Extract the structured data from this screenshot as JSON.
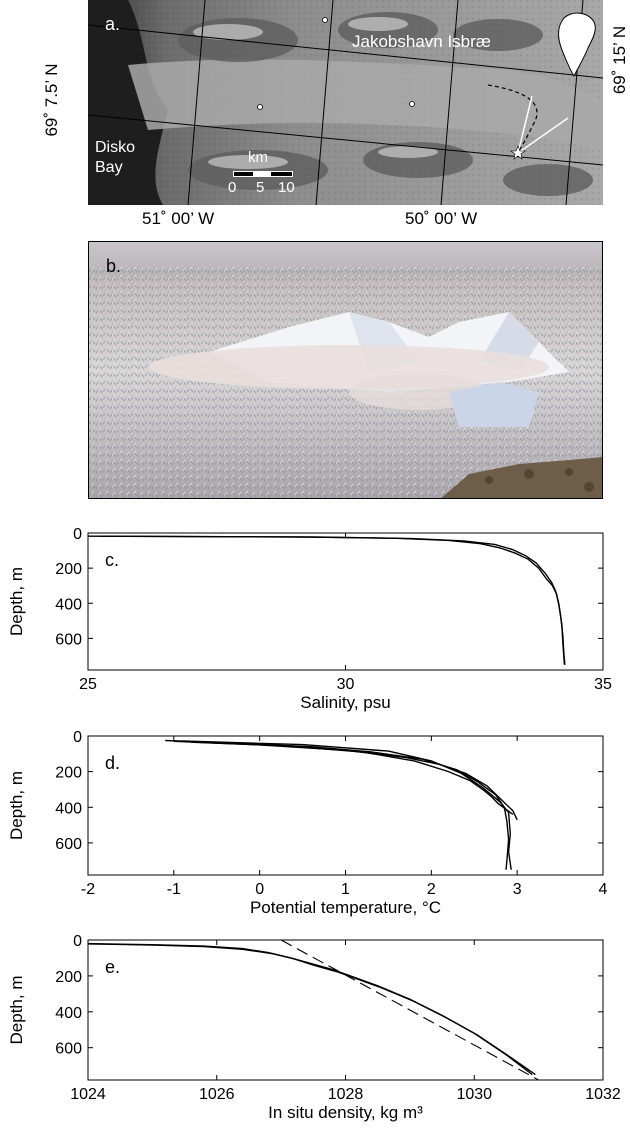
{
  "panel_a": {
    "letter": "a.",
    "glacier_label": "Jakobshavn Isbræ",
    "bay_label_1": "Disko",
    "bay_label_2": "Bay",
    "lat_left": "69˚ 7.5’ N",
    "lat_right": "69˚ 15’ N",
    "lon_1": "51˚ 00’ W",
    "lon_2": "50˚ 00’ W",
    "scale_unit": "km",
    "scale_ticks": [
      "0",
      "5",
      "10"
    ]
  },
  "panel_b": {
    "letter": "b."
  },
  "chart_data": [
    {
      "type": "line",
      "panel_letter": "c.",
      "xlabel": "Salinity, psu",
      "ylabel": "Depth, m",
      "xlim": [
        25,
        35
      ],
      "ylim": [
        780,
        0
      ],
      "x_ticks": [
        25,
        30,
        35
      ],
      "y_ticks": [
        0,
        200,
        400,
        600
      ],
      "grid": false,
      "series": [
        {
          "points": [
            [
              25.0,
              18
            ],
            [
              29.0,
              22
            ],
            [
              31.0,
              30
            ],
            [
              32.0,
              42
            ],
            [
              32.6,
              60
            ],
            [
              33.0,
              85
            ],
            [
              33.3,
              115
            ],
            [
              33.55,
              150
            ],
            [
              33.75,
              200
            ],
            [
              33.9,
              260
            ],
            [
              34.02,
              300
            ],
            [
              34.1,
              350
            ],
            [
              34.15,
              420
            ],
            [
              34.2,
              520
            ],
            [
              34.22,
              620
            ],
            [
              34.25,
              750
            ]
          ]
        },
        {
          "points": [
            [
              25.2,
              18
            ],
            [
              29.4,
              23
            ],
            [
              31.3,
              32
            ],
            [
              32.3,
              45
            ],
            [
              32.9,
              65
            ],
            [
              33.25,
              95
            ],
            [
              33.5,
              130
            ],
            [
              33.7,
              170
            ],
            [
              33.88,
              230
            ],
            [
              34.0,
              280
            ],
            [
              34.08,
              330
            ],
            [
              34.14,
              400
            ],
            [
              34.18,
              480
            ],
            [
              34.22,
              580
            ],
            [
              34.24,
              690
            ],
            [
              34.26,
              750
            ]
          ]
        }
      ]
    },
    {
      "type": "line",
      "panel_letter": "d.",
      "xlabel": "Potential temperature, °C",
      "ylabel": "Depth, m",
      "xlim": [
        -2,
        4
      ],
      "ylim": [
        780,
        0
      ],
      "x_ticks": [
        -2,
        -1,
        0,
        1,
        2,
        3,
        4
      ],
      "y_ticks": [
        0,
        200,
        400,
        600
      ],
      "grid": false,
      "series": [
        {
          "points": [
            [
              -1.1,
              25
            ],
            [
              -0.3,
              40
            ],
            [
              0.6,
              60
            ],
            [
              1.3,
              90
            ],
            [
              1.9,
              130
            ],
            [
              2.3,
              190
            ],
            [
              2.55,
              260
            ],
            [
              2.75,
              330
            ],
            [
              2.85,
              400
            ],
            [
              2.88,
              480
            ],
            [
              2.9,
              580
            ],
            [
              2.88,
              700
            ],
            [
              2.87,
              750
            ]
          ]
        },
        {
          "points": [
            [
              -1.0,
              30
            ],
            [
              0.0,
              50
            ],
            [
              1.0,
              80
            ],
            [
              1.7,
              120
            ],
            [
              2.1,
              160
            ],
            [
              2.4,
              210
            ],
            [
              2.65,
              280
            ],
            [
              2.8,
              350
            ],
            [
              2.95,
              420
            ],
            [
              3.0,
              470
            ]
          ]
        },
        {
          "points": [
            [
              -0.8,
              35
            ],
            [
              0.3,
              55
            ],
            [
              1.2,
              90
            ],
            [
              1.8,
              140
            ],
            [
              2.2,
              200
            ],
            [
              2.45,
              250
            ],
            [
              2.6,
              300
            ],
            [
              2.7,
              340
            ],
            [
              2.78,
              380
            ],
            [
              2.95,
              440
            ]
          ]
        },
        {
          "points": [
            [
              -0.9,
              28
            ],
            [
              0.5,
              48
            ],
            [
              1.5,
              85
            ],
            [
              2.0,
              140
            ],
            [
              2.35,
              210
            ],
            [
              2.6,
              290
            ],
            [
              2.8,
              370
            ],
            [
              2.9,
              430
            ],
            [
              2.92,
              550
            ],
            [
              2.9,
              650
            ],
            [
              2.93,
              750
            ]
          ]
        }
      ]
    },
    {
      "type": "line",
      "panel_letter": "e.",
      "xlabel": "In situ density, kg m³",
      "ylabel": "Depth, m",
      "xlim": [
        1024,
        1032
      ],
      "ylim": [
        780,
        0
      ],
      "x_ticks": [
        1024,
        1026,
        1028,
        1030,
        1032
      ],
      "y_ticks": [
        0,
        200,
        400,
        600
      ],
      "grid": false,
      "series": [
        {
          "style": "solid",
          "points": [
            [
              1024.0,
              20
            ],
            [
              1025.0,
              26
            ],
            [
              1025.8,
              34
            ],
            [
              1026.4,
              48
            ],
            [
              1026.8,
              70
            ],
            [
              1027.15,
              100
            ],
            [
              1027.5,
              135
            ],
            [
              1027.8,
              165
            ],
            [
              1028.0,
              190
            ],
            [
              1028.5,
              255
            ],
            [
              1029.0,
              330
            ],
            [
              1029.5,
              420
            ],
            [
              1030.0,
              520
            ],
            [
              1030.5,
              640
            ],
            [
              1030.9,
              750
            ]
          ]
        },
        {
          "style": "solid",
          "points": [
            [
              1024.0,
              22
            ],
            [
              1025.0,
              28
            ],
            [
              1025.8,
              37
            ],
            [
              1026.4,
              52
            ],
            [
              1026.85,
              75
            ],
            [
              1027.2,
              105
            ],
            [
              1027.5,
              140
            ],
            [
              1027.85,
              175
            ],
            [
              1028.05,
              200
            ],
            [
              1028.55,
              265
            ],
            [
              1029.05,
              340
            ],
            [
              1029.55,
              430
            ],
            [
              1030.05,
              530
            ],
            [
              1030.55,
              650
            ],
            [
              1030.95,
              750
            ]
          ]
        },
        {
          "style": "dashed",
          "points": [
            [
              1027.0,
              0
            ],
            [
              1031.0,
              780
            ]
          ]
        }
      ]
    }
  ]
}
